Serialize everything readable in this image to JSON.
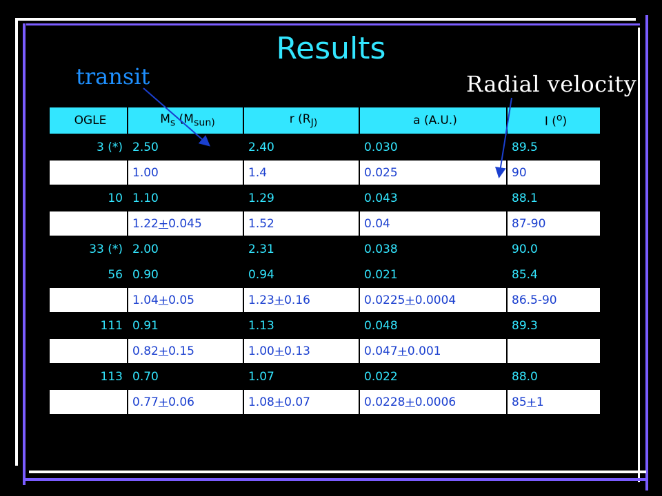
{
  "slide": {
    "title": "Results",
    "annotations": {
      "transit": "transit",
      "radial_velocity": "Radial velocity"
    }
  },
  "table": {
    "headers": [
      "OGLE",
      "Ms (Msun)",
      "r (RJ)",
      "a (A.U.)",
      "I (o)"
    ],
    "header_parts": {
      "ms_main": "M",
      "ms_sub": "s",
      "ms_paren": " (M",
      "ms_sub2": "sun)",
      "r_main": "r (R",
      "r_sub": "J)",
      "a": "a (A.U.)",
      "i_main": "I (",
      "i_sup": "o",
      "i_close": ")"
    },
    "rows": [
      {
        "ogle": "3 (*)",
        "ms": "2.50",
        "r": "2.40",
        "a": "0.030",
        "i": "89.5",
        "style": "dark"
      },
      {
        "ogle": "",
        "ms": "1.00",
        "r": "1.4",
        "a": "0.025",
        "i": "90",
        "style": "light"
      },
      {
        "ogle": "10",
        "ms": "1.10",
        "r": "1.29",
        "a": "0.043",
        "i": "88.1",
        "style": "dark"
      },
      {
        "ogle": "",
        "ms": "1.22+0.045",
        "r": "1.52",
        "a": "0.04",
        "i": "87-90",
        "style": "light"
      },
      {
        "ogle": "33 (*)",
        "ms": "2.00",
        "r": "2.31",
        "a": "0.038",
        "i": "90.0",
        "style": "dark"
      },
      {
        "ogle": "56",
        "ms": "0.90",
        "r": "0.94",
        "a": "0.021",
        "i": "85.4",
        "style": "dark"
      },
      {
        "ogle": "",
        "ms": "1.04+0.05",
        "r": "1.23+0.16",
        "a": "0.0225+0.0004",
        "i": "86.5-90",
        "style": "light"
      },
      {
        "ogle": "111",
        "ms": "0.91",
        "r": "1.13",
        "a": "0.048",
        "i": "89.3",
        "style": "dark"
      },
      {
        "ogle": "",
        "ms": "0.82+0.15",
        "r": "1.00+0.13",
        "a": "0.047+0.001",
        "i": "",
        "style": "light"
      },
      {
        "ogle": "113",
        "ms": "0.70",
        "r": "1.07",
        "a": "0.022",
        "i": "88.0",
        "style": "dark"
      },
      {
        "ogle": "",
        "ms": "0.77+0.06",
        "r": "1.08+0.07",
        "a": "0.0228+0.0006",
        "i": "85+1",
        "style": "light"
      }
    ]
  },
  "colors": {
    "accent_cyan": "#33e6ff",
    "transit_blue": "#1e90ff",
    "light_row_text": "#1a3fcf",
    "frame_purple": "#7a5cff",
    "background": "#000000"
  }
}
